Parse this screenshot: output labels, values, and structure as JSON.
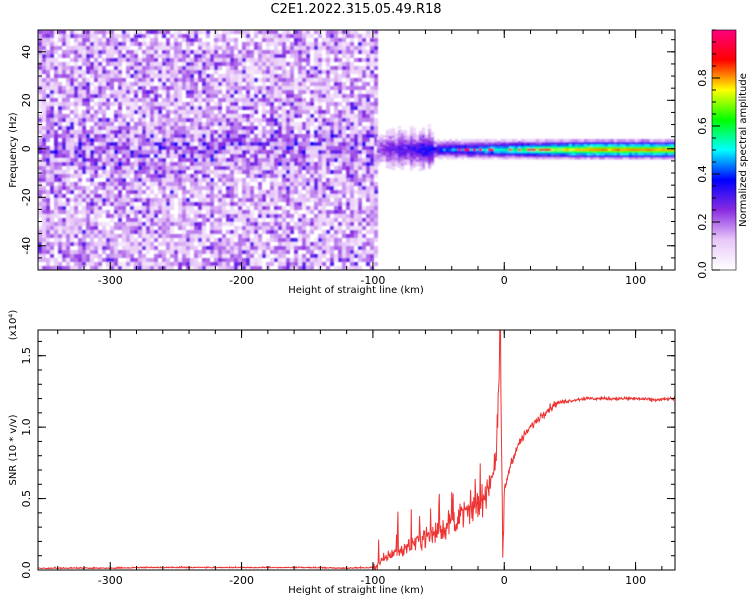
{
  "title": "C2E1.2022.315.05.49.R18",
  "chart_data": [
    {
      "type": "heatmap",
      "xlabel": "Height of straight line (km)",
      "ylabel": "Frequency (Hz)",
      "xlim": [
        -355,
        130
      ],
      "ylim": [
        -50,
        49
      ],
      "xticks": [
        -300,
        -200,
        -100,
        0,
        100
      ],
      "yticks": [
        -40,
        -20,
        0,
        20,
        40
      ],
      "colorbar": {
        "label": "Normalized spectral amplitude",
        "range": [
          0,
          1
        ],
        "ticks": [
          0.0,
          0.2,
          0.4,
          0.6,
          0.8
        ],
        "tick_labels": [
          "0.0",
          "0.2",
          "0.4",
          "0.6",
          "0.8"
        ],
        "colormap": [
          "#ffffff",
          "#e8c8f8",
          "#8a2be2",
          "#0000ff",
          "#00ffff",
          "#00ff00",
          "#ffff00",
          "#ff0000",
          "#ff0080"
        ]
      },
      "regions": [
        {
          "x_range": [
            -355,
            -97
          ],
          "freq_range": [
            -50,
            49
          ],
          "amplitude_range": [
            0.0,
            0.25
          ]
        },
        {
          "x_range": [
            -97,
            130
          ],
          "freq_center": 0,
          "freq_halfwidth": 5,
          "amplitude_range": [
            0.2,
            1.0
          ]
        }
      ],
      "grid": false
    },
    {
      "type": "line",
      "xlabel": "Height of straight line (km)",
      "ylabel": "SNR (10 * v/v)",
      "y_multiplier_label": "(x10⁴)",
      "xlim": [
        -355,
        130
      ],
      "ylim": [
        0,
        1.68
      ],
      "xticks": [
        -300,
        -200,
        -100,
        0,
        100
      ],
      "yticks": [
        0.0,
        0.5,
        1.0,
        1.5
      ],
      "ytick_labels": [
        "0.0",
        "0.5",
        "1.0",
        "1.5"
      ],
      "color": "#ee3333",
      "x": [
        -355,
        -300,
        -270,
        -200,
        -150,
        -120,
        -100,
        -92,
        -85,
        -75,
        -65,
        -55,
        -45,
        -38,
        -32,
        -25,
        -18,
        -12,
        -6,
        -3,
        -1,
        0,
        5,
        12,
        20,
        30,
        40,
        60,
        80,
        100,
        115,
        130
      ],
      "y": [
        0.01,
        0.01,
        0.015,
        0.015,
        0.015,
        0.01,
        0.015,
        0.07,
        0.12,
        0.15,
        0.22,
        0.25,
        0.3,
        0.35,
        0.38,
        0.42,
        0.47,
        0.58,
        0.8,
        1.62,
        0.05,
        0.55,
        0.75,
        0.9,
        1.0,
        1.1,
        1.17,
        1.2,
        1.2,
        1.2,
        1.19,
        1.2
      ],
      "grid": false
    }
  ]
}
